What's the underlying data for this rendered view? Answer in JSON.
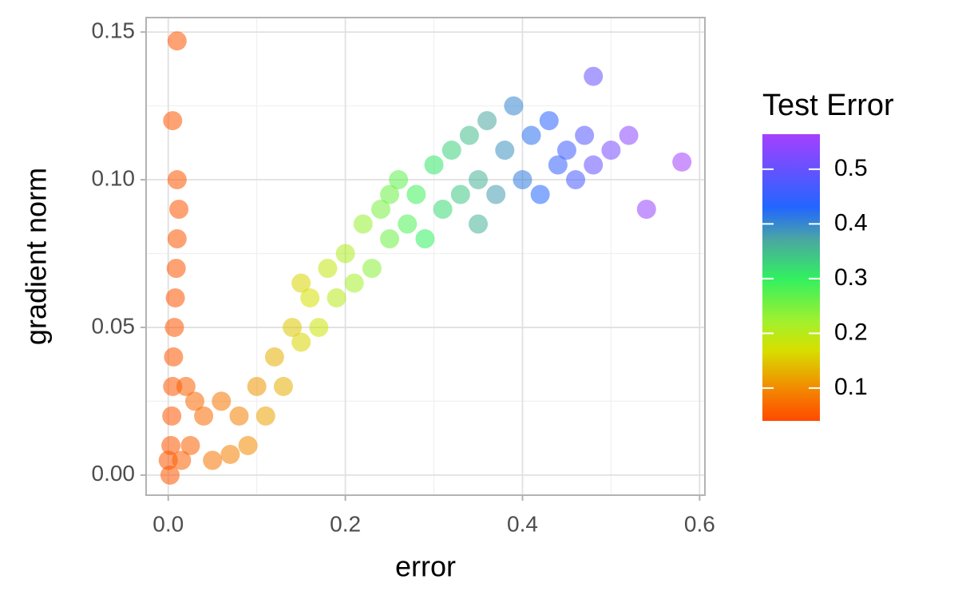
{
  "chart_data": {
    "type": "scatter",
    "x_label": "error",
    "y_label": "gradient norm",
    "legend_title": "Test Error",
    "xlim": [
      -0.025,
      0.606
    ],
    "ylim": [
      -0.0068,
      0.1549
    ],
    "xticks": [
      {
        "value": 0,
        "label": "0.0"
      },
      0.2,
      0.4,
      0.6
    ],
    "yticks": [
      {
        "value": 0,
        "label": "0.00"
      },
      {
        "value": 0.05,
        "label": "0.05"
      },
      {
        "value": 0.1,
        "label": "0.10"
      },
      {
        "value": 0.15,
        "label": "0.15"
      }
    ],
    "x_minor_ticks": [
      0.1,
      0.3,
      0.5
    ],
    "y_minor_ticks": [
      0.025,
      0.075,
      0.125
    ],
    "grid": true,
    "colorbar_lim": [
      0.04,
      0.564
    ],
    "colorbar_ticks": [
      0.1,
      0.2,
      0.3,
      0.4,
      0.5
    ],
    "color_stops": [
      0.04,
      0.1,
      0.17,
      0.22,
      0.3,
      0.37,
      0.43,
      0.564
    ],
    "colors": [
      "#ff4a00",
      "#f28a00",
      "#d6e000",
      "#a4f02c",
      "#32f060",
      "#4aa8a0",
      "#2266ff",
      "#a440ff"
    ],
    "x": [
      0.002,
      0.003,
      0.004,
      0.005,
      0.006,
      0.007,
      0.008,
      0.009,
      0.01,
      0.012,
      0.01,
      0.005,
      0.0,
      0.015,
      0.02,
      0.03,
      0.025,
      0.04,
      0.05,
      0.06,
      0.07,
      0.08,
      0.09,
      0.1,
      0.11,
      0.12,
      0.13,
      0.14,
      0.15,
      0.16,
      0.17,
      0.18,
      0.19,
      0.2,
      0.21,
      0.22,
      0.23,
      0.24,
      0.25,
      0.26,
      0.27,
      0.28,
      0.29,
      0.3,
      0.31,
      0.32,
      0.33,
      0.34,
      0.35,
      0.36,
      0.37,
      0.38,
      0.39,
      0.4,
      0.41,
      0.42,
      0.43,
      0.44,
      0.45,
      0.46,
      0.47,
      0.48,
      0.5,
      0.52,
      0.54,
      0.58,
      0.48,
      0.01,
      0.15,
      0.25,
      0.35
    ],
    "y": [
      0.0,
      0.01,
      0.02,
      0.03,
      0.04,
      0.05,
      0.06,
      0.07,
      0.08,
      0.09,
      0.1,
      0.12,
      0.005,
      0.005,
      0.03,
      0.025,
      0.01,
      0.02,
      0.005,
      0.025,
      0.007,
      0.02,
      0.01,
      0.03,
      0.02,
      0.04,
      0.03,
      0.05,
      0.045,
      0.06,
      0.05,
      0.07,
      0.06,
      0.075,
      0.065,
      0.085,
      0.07,
      0.09,
      0.08,
      0.1,
      0.085,
      0.095,
      0.08,
      0.105,
      0.09,
      0.11,
      0.095,
      0.115,
      0.1,
      0.12,
      0.095,
      0.11,
      0.125,
      0.1,
      0.115,
      0.095,
      0.12,
      0.105,
      0.11,
      0.1,
      0.115,
      0.105,
      0.11,
      0.115,
      0.09,
      0.106,
      0.135,
      0.147,
      0.065,
      0.095,
      0.085
    ],
    "color_values": [
      0.05,
      0.05,
      0.05,
      0.05,
      0.05,
      0.05,
      0.05,
      0.05,
      0.05,
      0.05,
      0.05,
      0.05,
      0.05,
      0.06,
      0.06,
      0.07,
      0.06,
      0.07,
      0.08,
      0.08,
      0.09,
      0.09,
      0.1,
      0.11,
      0.12,
      0.13,
      0.13,
      0.15,
      0.16,
      0.17,
      0.18,
      0.19,
      0.2,
      0.21,
      0.22,
      0.23,
      0.24,
      0.25,
      0.26,
      0.27,
      0.28,
      0.29,
      0.3,
      0.31,
      0.32,
      0.33,
      0.34,
      0.35,
      0.36,
      0.37,
      0.38,
      0.39,
      0.4,
      0.41,
      0.42,
      0.43,
      0.44,
      0.45,
      0.46,
      0.47,
      0.48,
      0.5,
      0.52,
      0.54,
      0.55,
      0.56,
      0.5,
      0.05,
      0.16,
      0.26,
      0.36
    ]
  }
}
